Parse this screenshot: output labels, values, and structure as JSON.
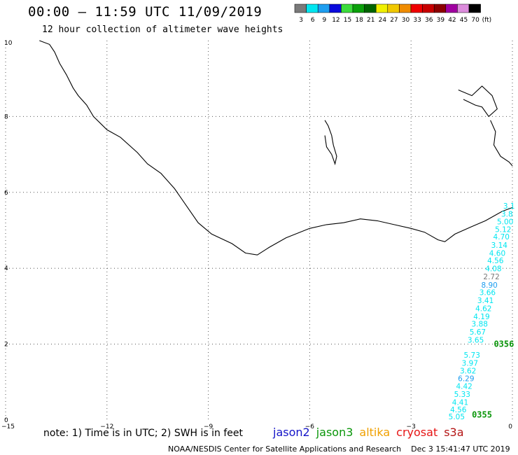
{
  "header": {
    "title": "00:00 – 11:59 UTC 11/09/2019",
    "subtitle": "12 hour collection of altimeter wave heights"
  },
  "colorbar": {
    "unit_label": "(ft)",
    "bins": [
      {
        "label": "3",
        "color": "#7a7a7a"
      },
      {
        "label": "6",
        "color": "#00e6f0"
      },
      {
        "label": "9",
        "color": "#1e9ef0"
      },
      {
        "label": "12",
        "color": "#0a0adc"
      },
      {
        "label": "15",
        "color": "#3cdc3c"
      },
      {
        "label": "18",
        "color": "#0aa00a"
      },
      {
        "label": "21",
        "color": "#006400"
      },
      {
        "label": "24",
        "color": "#f0f000"
      },
      {
        "label": "27",
        "color": "#f0c800"
      },
      {
        "label": "30",
        "color": "#f08c00"
      },
      {
        "label": "33",
        "color": "#f00000"
      },
      {
        "label": "36",
        "color": "#c80000"
      },
      {
        "label": "39",
        "color": "#8c0000"
      },
      {
        "label": "42",
        "color": "#a000a0"
      },
      {
        "label": "45",
        "color": "#dc8cdc"
      },
      {
        "label": "70",
        "color": "#000000"
      }
    ]
  },
  "map": {
    "x_ticks": [
      "−15",
      "−12",
      "−9",
      "−6",
      "−3",
      "0"
    ],
    "y_ticks": [
      "0",
      "2",
      "4",
      "6",
      "8",
      "10"
    ],
    "x_range": [
      -15,
      0
    ],
    "y_range": [
      0,
      10
    ],
    "grid": "dotted"
  },
  "track": {
    "satellite": "jason3",
    "time_labels": [
      {
        "text": "0356",
        "lon": -0.55,
        "lat": 1.93
      },
      {
        "text": "0355",
        "lon": -1.2,
        "lat": 0.06
      }
    ],
    "observations": [
      {
        "lat": 5.57,
        "value": "3.1",
        "color": "#00e6f0"
      },
      {
        "lat": 5.36,
        "value": "3.8",
        "color": "#00e6f0"
      },
      {
        "lat": 5.16,
        "value": "5.00",
        "color": "#00e6f0"
      },
      {
        "lat": 4.95,
        "value": "5.12",
        "color": "#00e6f0"
      },
      {
        "lat": 4.76,
        "value": "4.70",
        "color": "#00e6f0"
      },
      {
        "lat": 4.54,
        "value": "3.14",
        "color": "#00e6f0"
      },
      {
        "lat": 4.33,
        "value": "4.60",
        "color": "#00e6f0"
      },
      {
        "lat": 4.13,
        "value": "4.56",
        "color": "#00e6f0"
      },
      {
        "lat": 3.92,
        "value": "4.08",
        "color": "#00e6f0"
      },
      {
        "lat": 3.71,
        "value": "2.72",
        "color": "#7a7a7a"
      },
      {
        "lat": 3.49,
        "value": "8.90",
        "color": "#1e9ef0"
      },
      {
        "lat": 3.29,
        "value": "3.66",
        "color": "#00e6f0"
      },
      {
        "lat": 3.08,
        "value": "3.41",
        "color": "#00e6f0"
      },
      {
        "lat": 2.87,
        "value": "4.62",
        "color": "#00e6f0"
      },
      {
        "lat": 2.66,
        "value": "4.19",
        "color": "#00e6f0"
      },
      {
        "lat": 2.46,
        "value": "3.88",
        "color": "#00e6f0"
      },
      {
        "lat": 2.25,
        "value": "5.67",
        "color": "#00e6f0"
      },
      {
        "lat": 2.04,
        "value": "3.65",
        "color": "#00e6f0"
      },
      {
        "lat": 1.64,
        "value": "5.73",
        "color": "#00e6f0"
      },
      {
        "lat": 1.43,
        "value": "3.97",
        "color": "#00e6f0"
      },
      {
        "lat": 1.23,
        "value": "3.62",
        "color": "#00e6f0"
      },
      {
        "lat": 1.02,
        "value": "6.29",
        "color": "#1e9ef0"
      },
      {
        "lat": 0.82,
        "value": "4.42",
        "color": "#00e6f0"
      },
      {
        "lat": 0.61,
        "value": "5.33",
        "color": "#00e6f0"
      },
      {
        "lat": 0.4,
        "value": "4.41",
        "color": "#00e6f0"
      },
      {
        "lat": 0.2,
        "value": "4.56",
        "color": "#00e6f0"
      },
      {
        "lat": 0.02,
        "value": "5.05",
        "color": "#00e6f0"
      }
    ]
  },
  "coast": {
    "main": [
      [
        -14.0,
        10.0
      ],
      [
        -13.7,
        9.9
      ],
      [
        -13.55,
        9.7
      ],
      [
        -13.4,
        9.4
      ],
      [
        -13.2,
        9.1
      ],
      [
        -13.0,
        8.75
      ],
      [
        -12.85,
        8.55
      ],
      [
        -12.6,
        8.3
      ],
      [
        -12.4,
        8.0
      ],
      [
        -12.0,
        7.65
      ],
      [
        -11.6,
        7.45
      ],
      [
        -11.1,
        7.05
      ],
      [
        -10.8,
        6.75
      ],
      [
        -10.4,
        6.5
      ],
      [
        -10.0,
        6.1
      ],
      [
        -9.65,
        5.65
      ],
      [
        -9.3,
        5.2
      ],
      [
        -8.9,
        4.9
      ],
      [
        -8.3,
        4.65
      ],
      [
        -7.9,
        4.4
      ],
      [
        -7.55,
        4.35
      ],
      [
        -7.2,
        4.55
      ],
      [
        -6.7,
        4.8
      ],
      [
        -6.0,
        5.05
      ],
      [
        -5.5,
        5.15
      ],
      [
        -5.0,
        5.2
      ],
      [
        -4.5,
        5.3
      ],
      [
        -4.0,
        5.25
      ],
      [
        -3.5,
        5.15
      ],
      [
        -3.0,
        5.05
      ],
      [
        -2.6,
        4.95
      ],
      [
        -2.2,
        4.75
      ],
      [
        -2.0,
        4.7
      ],
      [
        -1.7,
        4.9
      ],
      [
        -1.2,
        5.1
      ],
      [
        -0.8,
        5.25
      ],
      [
        -0.3,
        5.5
      ],
      [
        0.0,
        5.6
      ]
    ],
    "lake_volta": [
      [
        -0.65,
        7.9
      ],
      [
        -0.5,
        7.6
      ],
      [
        -0.55,
        7.25
      ],
      [
        -0.35,
        6.95
      ],
      [
        -0.1,
        6.8
      ],
      [
        0.0,
        6.7
      ]
    ],
    "lake_volta_north": [
      [
        -1.6,
        8.7
      ],
      [
        -1.2,
        8.55
      ],
      [
        -0.9,
        8.8
      ],
      [
        -0.6,
        8.55
      ],
      [
        -0.45,
        8.2
      ],
      [
        -0.7,
        8.0
      ],
      [
        -0.9,
        8.25
      ],
      [
        -1.1,
        8.3
      ],
      [
        -1.45,
        8.45
      ]
    ],
    "kossou_lake": [
      [
        -5.55,
        7.5
      ],
      [
        -5.5,
        7.2
      ],
      [
        -5.35,
        7.0
      ],
      [
        -5.25,
        6.75
      ],
      [
        -5.2,
        6.95
      ],
      [
        -5.3,
        7.25
      ],
      [
        -5.35,
        7.5
      ],
      [
        -5.45,
        7.75
      ],
      [
        -5.55,
        7.9
      ]
    ]
  },
  "footer": {
    "note": "note: 1) Time is in UTC; 2) SWH is in feet",
    "satellites": [
      {
        "name": "jason2",
        "color": "#1414c8"
      },
      {
        "name": "jason3",
        "color": "#0a960a"
      },
      {
        "name": "altika",
        "color": "#f0a000"
      },
      {
        "name": "cryosat",
        "color": "#e61414"
      },
      {
        "name": "s3a",
        "color": "#b41414"
      }
    ],
    "credit": "NOAA/NESDIS Center for Satellite Applications and Research",
    "timestamp": "Dec  3 15:41:47 UTC 2019"
  }
}
